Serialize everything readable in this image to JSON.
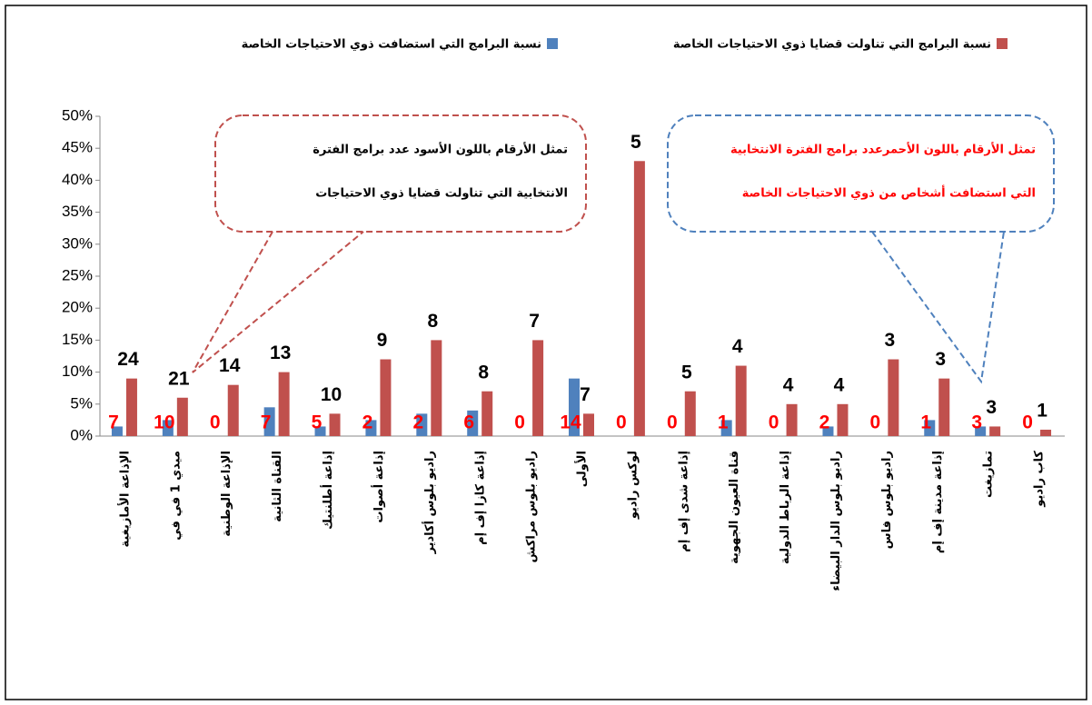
{
  "chart_data": {
    "type": "bar",
    "categories": [
      "الإذاعة الأمازيغية",
      "ميدي 1 في في",
      "الإذاعة الوطنية",
      "القناة الثانية",
      "إذاعة أطلنتيك",
      "إذاعة أصوات",
      "راديو بلوس أكادير",
      "إذاعة كازا إف إم",
      "راديو بلوس مراكش",
      "الأولى",
      "لوكس راديو",
      "إذاعة شدى إف إم",
      "قناة العيون الجهوية",
      "إذاعة الرباط الدولية",
      "راديو بلوس الدار البيضاء",
      "راديو بلوس فاس",
      "إذاعة مدينة إف إم",
      "تمازيغت",
      "كاب راديو"
    ],
    "series": [
      {
        "name": "نسبة البرامج التي استضافت ذوي الاحتياجات الخاصة",
        "color": "#4f81bd",
        "values": [
          1.5,
          2.5,
          0,
          4.5,
          1.5,
          2.5,
          3.5,
          4,
          0,
          9,
          0,
          0,
          2.5,
          0,
          1.5,
          0,
          2.5,
          1.5,
          0
        ],
        "counts": [
          "7",
          "10",
          "0",
          "7",
          "5",
          "2",
          "2",
          "6",
          "0",
          "14",
          "0",
          "0",
          "1",
          "0",
          "2",
          "0",
          "1",
          "3",
          "0"
        ],
        "counts_color": "#ff0000"
      },
      {
        "name": "نسبة البرامج التي تناولت قضايا ذوي الاحتياجات الخاصة",
        "color": "#c0504d",
        "values": [
          9,
          6,
          8,
          10,
          3.5,
          12,
          15,
          7,
          15,
          3.5,
          43,
          7,
          11,
          5,
          5,
          12,
          9,
          1.5,
          1
        ],
        "counts": [
          "24",
          "21",
          "14",
          "13",
          "10",
          "9",
          "8",
          "8",
          "7",
          "7",
          "5",
          "5",
          "4",
          "4",
          "4",
          "3",
          "3",
          "3",
          "1"
        ],
        "counts_color": "#000000"
      }
    ],
    "annotations": [
      {
        "lines": [
          "تمثل الأرقام باللون الأسود عدد برامج الفترة",
          "الانتخابية التي تناولت قضايا ذوي الاحتياجات"
        ],
        "color": "#000000",
        "border": "#c0504d"
      },
      {
        "lines": [
          "تمثل الأرقام باللون الأحمرعدد برامج الفترة الانتخابية",
          "التي استضافت أشخاص من ذوي الاحتياجات الخاصة"
        ],
        "color": "#ff0000",
        "border": "#4f81bd"
      }
    ],
    "ylim": [
      0,
      50
    ],
    "yticks": [
      {
        "value": 0,
        "label": "0%"
      },
      {
        "value": 5,
        "label": "5%"
      },
      {
        "value": 10,
        "label": "10%"
      },
      {
        "value": 15,
        "label": "15%"
      },
      {
        "value": 20,
        "label": "20%"
      },
      {
        "value": 25,
        "label": "25%"
      },
      {
        "value": 30,
        "label": "30%"
      },
      {
        "value": 35,
        "label": "35%"
      },
      {
        "value": 40,
        "label": "40%"
      },
      {
        "value": 45,
        "label": "45%"
      },
      {
        "value": 50,
        "label": "50%"
      }
    ],
    "grid": false
  }
}
